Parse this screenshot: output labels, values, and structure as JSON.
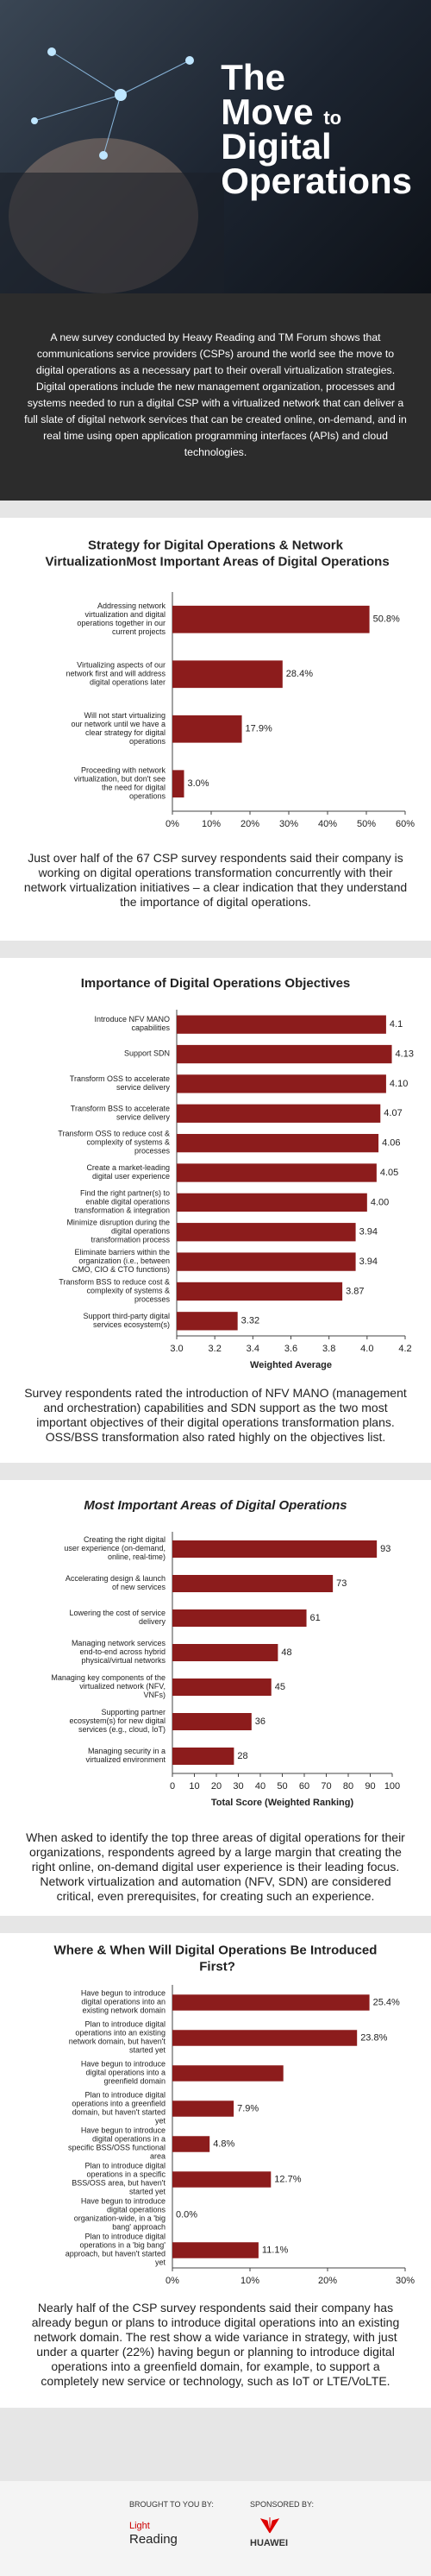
{
  "header": {
    "title_lines": [
      "The",
      "Move",
      "to",
      "Digital",
      "Operations"
    ]
  },
  "intro": "A new survey conducted by Heavy Reading and TM Forum shows that communications service providers (CSPs) around the world see the move to digital operations as a necessary part to their overall virtualization strategies. Digital operations include the new management organization, processes and systems needed to run a digital CSP with a virtualized network that can deliver a full slate of digital network services that can be created online, on-demand, and in real time using open application programming interfaces (APIs) and cloud technologies.",
  "chart_data": [
    {
      "type": "hbar",
      "title": "Strategy for Digital Operations & Network VirtualizationMost Important Areas of Digital Operations",
      "color": "#8c1c1c",
      "categories": [
        "Addressing network virtualization and digital operations together in our current projects",
        "Virtualizing aspects of our network first and will address digital operations later",
        "Will not start virtualizing our network until we have a clear strategy for digital operations",
        "Proceeding with network virtualization, but don't see the need for digital operations"
      ],
      "values": [
        50.8,
        28.4,
        17.9,
        3.0
      ],
      "value_labels": [
        "50.8%",
        "28.4%",
        "17.9%",
        "3.0%"
      ],
      "xlim": [
        0,
        60
      ],
      "xticks": [
        {
          "value": 0,
          "label": "0%"
        },
        {
          "value": 10,
          "label": "10%"
        },
        {
          "value": 20,
          "label": "20%"
        },
        {
          "value": 30,
          "label": "30%"
        },
        {
          "value": 40,
          "label": "40%"
        },
        {
          "value": 50,
          "label": "50%"
        },
        {
          "value": 60,
          "label": "60%"
        }
      ]
    },
    {
      "type": "hbar",
      "title": "Importance of Digital Operations Objectives",
      "color": "#8c1c1c",
      "xlabel": "Weighted Average",
      "categories": [
        "Introduce NFV MANO capabilities",
        "Support SDN",
        "Transform OSS to accelerate service delivery",
        "Transform BSS to accelerate service delivery",
        "Transform OSS to reduce cost & complexity of systems & processes",
        "Create a market-leading digital user experience",
        "Find the right partner(s) to enable digital operations transformation & integration",
        "Minimize disruption during the digital operations transformation process",
        "Eliminate barriers within the organization (i.e., between CMO, CIO & CTO functions)",
        "Transform BSS to reduce cost & complexity of systems & processes",
        "Support third-party digital services ecosystem(s)"
      ],
      "values": [
        4.1,
        4.13,
        4.1,
        4.07,
        4.06,
        4.05,
        4.0,
        3.94,
        3.94,
        3.87,
        3.32
      ],
      "value_labels": [
        "4.1",
        "4.13",
        "4.10",
        "4.07",
        "4.06",
        "4.05",
        "4.00",
        "3.94",
        "3.94",
        "3.87",
        "3.32"
      ],
      "xlim": [
        3.0,
        4.2
      ],
      "xticks": [
        {
          "value": 3.0,
          "label": "3.0"
        },
        3.2,
        3.4,
        3.6,
        3.8,
        {
          "value": 4.0,
          "label": "4.0"
        },
        4.2
      ]
    },
    {
      "type": "hbar",
      "title": "Most Important Areas of Digital Operations",
      "color": "#8c1c1c",
      "xlabel": "Total Score (Weighted Ranking)",
      "categories": [
        "Creating the right digital user experience (on-demand, online, real-time)",
        "Accelerating design & launch of new services",
        "Lowering the cost of service delivery",
        "Managing network services end-to-end across hybrid physical/virtual networks",
        "Managing key components of the virtualized network (NFV, VNFs)",
        "Supporting partner ecosystem(s) for new digital services (e.g., cloud, IoT)",
        "Managing security in a virtualized environment"
      ],
      "values": [
        93,
        73,
        61,
        48,
        45,
        36,
        28
      ],
      "xlim": [
        0,
        100
      ],
      "xticks": [
        0,
        10,
        20,
        30,
        40,
        50,
        60,
        70,
        80,
        90,
        100
      ]
    },
    {
      "type": "hbar",
      "title": "Where & When Will Digital Operations Be Introduced First?",
      "color": "#8c1c1c",
      "categories": [
        "Have begun to introduce digital operations into an existing network domain",
        "Plan to introduce digital operations into an existing network domain, but haven't started yet",
        "Have begun to introduce digital operations into a greenfield domain",
        "Plan to introduce digital operations into a greenfield domain, but haven't started yet",
        "Have begun to introduce digital operations in a specific BSS/OSS functional area",
        "Plan to introduce digital operations in a specific BSS/OSS area, but haven't started yet",
        "Have begun to introduce digital operations organization-wide, in a 'big bang' approach",
        "Plan to introduce digital operations in a 'big bang' approach, but haven't started yet"
      ],
      "values": [
        25.4,
        23.8,
        14.3,
        7.9,
        4.8,
        12.7,
        0.0,
        11.1
      ],
      "value_labels": [
        "25.4%",
        "23.8%",
        null,
        "7.9%",
        "4.8%",
        "12.7%",
        "0.0%",
        "11.1%"
      ],
      "xlim": [
        0,
        30
      ],
      "xticks": [
        {
          "value": 0,
          "label": "0%"
        },
        {
          "value": 10,
          "label": "10%"
        },
        {
          "value": 20,
          "label": "20%"
        },
        {
          "value": 30,
          "label": "30%"
        }
      ]
    }
  ],
  "notes": [
    "Just over half of the 67 CSP survey respondents said their company is working on digital operations transformation concurrently with their network virtualization initiatives – a clear indication that they understand the importance of digital operations.",
    "Survey respondents rated the introduction of NFV MANO (management and orchestration) capabilities and SDN support as the two most important objectives of their digital operations transformation plans. OSS/BSS transformation also rated highly on the objectives list.",
    "When asked to identify the top three areas of digital operations for their organizations, respondents agreed by a large margin that creating the right online, on-demand digital user experience is their leading focus. Network virtualization and automation (NFV, SDN) are considered critical, even prerequisites, for creating such an experience.",
    "Nearly half of the CSP survey respondents said their company has already begun or plans to introduce digital operations into an existing network domain. The rest show a wide variance in strategy, with just under a quarter (22%) having begun or planning to introduce digital operations into a greenfield domain, for example, to support a completely new service or technology, such as IoT or LTE/VoLTE."
  ],
  "footer": {
    "brought_by": "BROUGHT TO YOU BY:",
    "brand": "Reading",
    "brand_prefix": "Light",
    "sponsored_by": "SPONSORED BY:",
    "sponsor": "HUAWEI"
  }
}
